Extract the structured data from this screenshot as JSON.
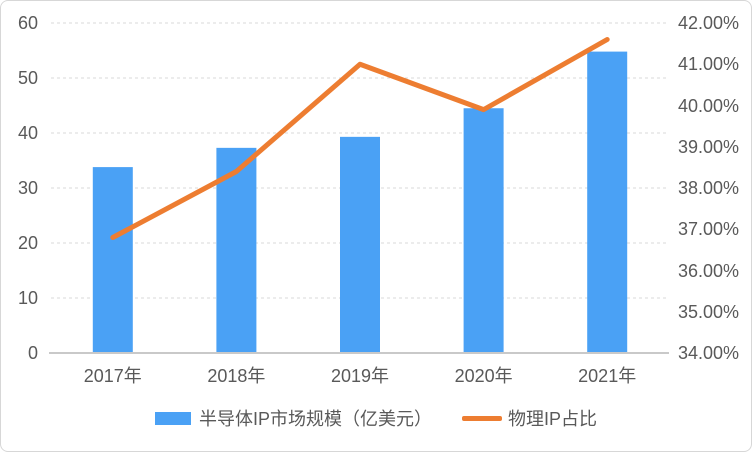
{
  "chart_data": {
    "type": "combo-bar-line",
    "categories": [
      "2017年",
      "2018年",
      "2019年",
      "2020年",
      "2021年"
    ],
    "series": [
      {
        "name": "半导体IP市场规模（亿美元）",
        "type": "bar",
        "axis": "left",
        "values": [
          33.8,
          37.3,
          39.3,
          44.5,
          54.8
        ]
      },
      {
        "name": "物理IP占比",
        "type": "line",
        "axis": "right",
        "values": [
          36.8,
          38.4,
          41.0,
          39.9,
          41.6
        ]
      }
    ],
    "left_axis": {
      "min": 0,
      "max": 60,
      "step": 10,
      "tick_labels": [
        "0",
        "10",
        "20",
        "30",
        "40",
        "50",
        "60"
      ]
    },
    "right_axis": {
      "min": 34,
      "max": 42,
      "step": 1,
      "tick_labels": [
        "34.00%",
        "35.00%",
        "36.00%",
        "37.00%",
        "38.00%",
        "39.00%",
        "40.00%",
        "41.00%",
        "42.00%"
      ]
    },
    "title": "",
    "grid": "horizontal dashed gridlines on",
    "legend_position": "bottom"
  },
  "legend": {
    "bar_label": "半导体IP市场规模（亿美元）",
    "line_label": "物理IP占比"
  },
  "colors": {
    "bar": "#4aa1f5",
    "line": "#ed7d31",
    "axis_text": "#595959",
    "gridline": "#d9d9d9",
    "axis_line": "#c9c9c9",
    "background": "#ffffff",
    "border": "#d7d7d7"
  }
}
